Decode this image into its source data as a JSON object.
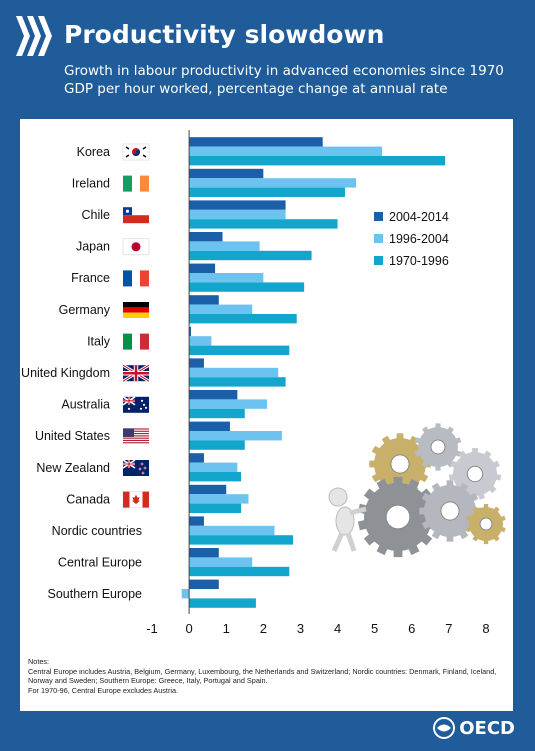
{
  "header": {
    "title": "Productivity slowdown",
    "subtitle_line1": "Growth in labour productivity in advanced economies since 1970",
    "subtitle_line2": "GDP per hour worked, percentage change at annual rate"
  },
  "notes": {
    "heading": "Notes:",
    "line1": "Central Europe includes Austria, Belgium, Germany, Luxembourg, the Netherlands and Switzerland; Nordic countries: Denmark, Finland, Iceland, Norway and Sweden; Southern Europe: Greece, Italy, Portugal and Spain.",
    "line2": "For 1970-96, Central Europe excludes Austria."
  },
  "footer": {
    "logo_text": "OECD"
  },
  "colors": {
    "background": "#1f5c99",
    "s2004_2014": "#1a5fa8",
    "s1996_2004": "#6cc3f0",
    "s1970_1996": "#12a6cc"
  },
  "chart_data": {
    "type": "bar",
    "orientation": "horizontal",
    "categories": [
      "Korea",
      "Ireland",
      "Chile",
      "Japan",
      "France",
      "Germany",
      "Italy",
      "United Kingdom",
      "Australia",
      "United States",
      "New Zealand",
      "Canada",
      "Nordic countries",
      "Central Europe",
      "Southern Europe"
    ],
    "flags": [
      "korea",
      "ireland",
      "chile",
      "japan",
      "france",
      "germany",
      "italy",
      "united-kingdom",
      "australia",
      "united-states",
      "new-zealand",
      "canada",
      "",
      "",
      ""
    ],
    "series": [
      {
        "name": "2004-2014",
        "color": "#1a5fa8",
        "values": [
          3.6,
          2.0,
          2.6,
          0.9,
          0.7,
          0.8,
          0.05,
          0.4,
          1.3,
          1.1,
          0.4,
          1.0,
          0.4,
          0.8,
          0.8
        ]
      },
      {
        "name": "1996-2004",
        "color": "#6cc3f0",
        "values": [
          5.2,
          4.5,
          2.6,
          1.9,
          2.0,
          1.7,
          0.6,
          2.4,
          2.1,
          2.5,
          1.3,
          1.6,
          2.3,
          1.7,
          -0.2
        ]
      },
      {
        "name": "1970-1996",
        "color": "#12a6cc",
        "values": [
          6.9,
          4.2,
          4.0,
          3.3,
          3.1,
          2.9,
          2.7,
          2.6,
          1.5,
          1.5,
          1.4,
          1.4,
          2.8,
          2.7,
          1.8
        ]
      }
    ],
    "xlim": [
      -1,
      8
    ],
    "xticks": [
      "-1",
      "0",
      "1",
      "2",
      "3",
      "4",
      "5",
      "6",
      "7",
      "8"
    ],
    "grid": false,
    "legend_position": "right"
  }
}
